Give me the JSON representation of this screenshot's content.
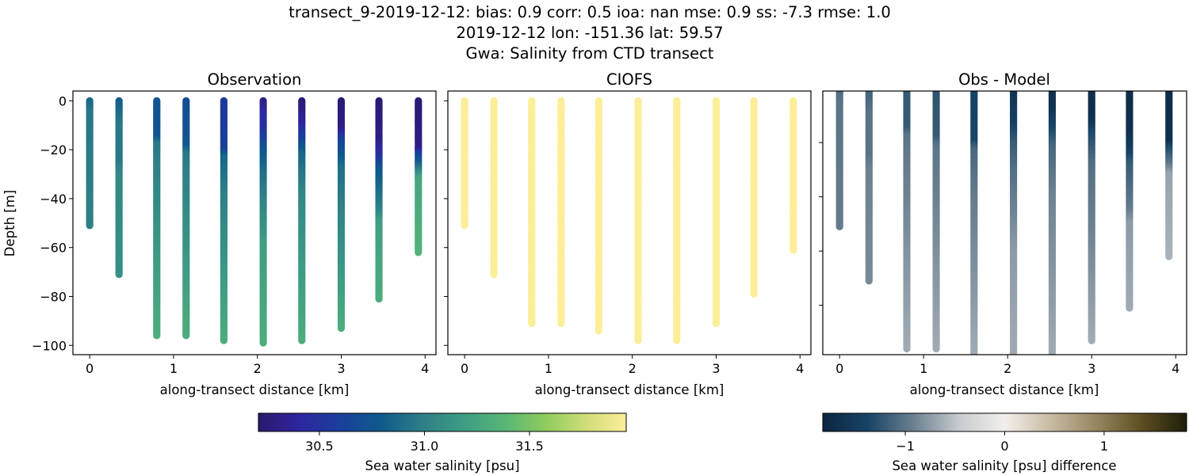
{
  "title_lines": [
    "transect_9-2019-12-12: bias: 0.9  corr: 0.5  ioa: nan  mse: 0.9  ss: -7.3  rmse: 1.0",
    "2019-12-12 lon: -151.36 lat: 59.57",
    "Gwa: Salinity from CTD transect"
  ],
  "chart_data": [
    {
      "type": "scatter",
      "title": "Observation",
      "xlabel": "along-transect distance [km]",
      "ylabel": "Depth [m]",
      "xlim": [
        -0.2,
        4.13
      ],
      "ylim": [
        -103.8,
        4.0
      ],
      "xticks": [
        0,
        1,
        2,
        3,
        4
      ],
      "yticks": [
        0,
        -20,
        -40,
        -60,
        -80,
        -100
      ],
      "colormap": "haline",
      "stations": [
        {
          "x": 0.0,
          "profile": [
            [
              0,
              30.85
            ],
            [
              -5,
              30.95
            ],
            [
              -51,
              31.0
            ]
          ]
        },
        {
          "x": 0.35,
          "profile": [
            [
              0,
              30.8
            ],
            [
              -10,
              30.95
            ],
            [
              -25,
              30.95
            ],
            [
              -30,
              31.05
            ],
            [
              -71,
              31.1
            ]
          ]
        },
        {
          "x": 0.8,
          "profile": [
            [
              0,
              30.75
            ],
            [
              -15,
              30.75
            ],
            [
              -18,
              30.95
            ],
            [
              -60,
              31.15
            ],
            [
              -96,
              31.3
            ]
          ]
        },
        {
          "x": 1.15,
          "profile": [
            [
              0,
              30.7
            ],
            [
              -18,
              30.75
            ],
            [
              -22,
              30.95
            ],
            [
              -96,
              31.3
            ]
          ]
        },
        {
          "x": 1.6,
          "profile": [
            [
              0,
              30.55
            ],
            [
              -20,
              30.6
            ],
            [
              -23,
              30.85
            ],
            [
              -40,
              31.0
            ],
            [
              -98,
              31.3
            ]
          ]
        },
        {
          "x": 2.07,
          "profile": [
            [
              0,
              30.3
            ],
            [
              -5,
              30.4
            ],
            [
              -12,
              30.5
            ],
            [
              -20,
              30.75
            ],
            [
              -30,
              30.9
            ],
            [
              -60,
              31.2
            ],
            [
              -99,
              31.3
            ]
          ]
        },
        {
          "x": 2.53,
          "profile": [
            [
              0,
              30.25
            ],
            [
              -8,
              30.35
            ],
            [
              -14,
              30.55
            ],
            [
              -22,
              30.85
            ],
            [
              -40,
              31.05
            ],
            [
              -98,
              31.3
            ]
          ]
        },
        {
          "x": 3.0,
          "profile": [
            [
              0,
              30.25
            ],
            [
              -12,
              30.3
            ],
            [
              -16,
              30.6
            ],
            [
              -28,
              30.9
            ],
            [
              -93,
              31.3
            ]
          ]
        },
        {
          "x": 3.45,
          "profile": [
            [
              0,
              30.25
            ],
            [
              -16,
              30.3
            ],
            [
              -22,
              30.45
            ],
            [
              -28,
              30.75
            ],
            [
              -45,
              31.0
            ],
            [
              -50,
              31.2
            ],
            [
              -81,
              31.3
            ]
          ]
        },
        {
          "x": 3.92,
          "profile": [
            [
              0,
              30.25
            ],
            [
              -20,
              30.3
            ],
            [
              -22,
              30.6
            ],
            [
              -28,
              30.95
            ],
            [
              -32,
              31.25
            ],
            [
              -62,
              31.35
            ]
          ]
        }
      ]
    },
    {
      "type": "scatter",
      "title": "CIOFS",
      "xlabel": "along-transect distance [km]",
      "xlim": [
        -0.2,
        4.13
      ],
      "ylim": [
        -103.8,
        4.0
      ],
      "xticks": [
        0,
        1,
        2,
        3,
        4
      ],
      "colormap": "haline",
      "stations": [
        {
          "x": 0.0,
          "profile": [
            [
              0,
              31.96
            ],
            [
              -51,
              31.96
            ]
          ]
        },
        {
          "x": 0.35,
          "profile": [
            [
              0,
              31.96
            ],
            [
              -71,
              31.96
            ]
          ]
        },
        {
          "x": 0.8,
          "profile": [
            [
              0,
              31.96
            ],
            [
              -91,
              31.96
            ]
          ]
        },
        {
          "x": 1.15,
          "profile": [
            [
              0,
              31.96
            ],
            [
              -91,
              31.96
            ]
          ]
        },
        {
          "x": 1.6,
          "profile": [
            [
              0,
              31.96
            ],
            [
              -94,
              31.96
            ]
          ]
        },
        {
          "x": 2.07,
          "profile": [
            [
              0,
              31.96
            ],
            [
              -98,
              31.96
            ]
          ]
        },
        {
          "x": 2.53,
          "profile": [
            [
              0,
              31.96
            ],
            [
              -98,
              31.96
            ]
          ]
        },
        {
          "x": 3.0,
          "profile": [
            [
              0,
              31.96
            ],
            [
              -91,
              31.96
            ]
          ]
        },
        {
          "x": 3.45,
          "profile": [
            [
              0,
              31.96
            ],
            [
              -79,
              31.96
            ]
          ]
        },
        {
          "x": 3.92,
          "profile": [
            [
              0,
              31.96
            ],
            [
              -61,
              31.96
            ]
          ]
        }
      ]
    },
    {
      "type": "scatter",
      "title": "Obs - Model",
      "xlabel": "along-transect distance [km]",
      "xlim": [
        -0.2,
        4.13
      ],
      "ylim": [
        -98.2,
        -1.0
      ],
      "xticks": [
        0,
        1,
        2,
        3,
        4
      ],
      "colormap": "diff",
      "derived_from": "Observation minus CIOFS"
    }
  ],
  "colorbars": [
    {
      "label": "Sea water salinity [psu]",
      "vmin": 30.21,
      "vmax": 31.96,
      "ticks": [
        "30.5",
        "31.0",
        "31.5"
      ],
      "stops": [
        "#2a186c",
        "#2e26a0",
        "#1a3f9b",
        "#0f5a8c",
        "#2d7f86",
        "#3d9c84",
        "#56b676",
        "#8dcb5e",
        "#cfdd78",
        "#fdee99"
      ]
    },
    {
      "label": "Sea water salinity [psu] difference",
      "vmin": -1.83,
      "vmax": 1.83,
      "ticks": [
        "−1",
        "0",
        "1"
      ],
      "stops": [
        "#0b2541",
        "#174466",
        "#6c8190",
        "#c8cbd0",
        "#f2efeb",
        "#c8bba3",
        "#978662",
        "#5e4f22",
        "#1e1e08"
      ]
    }
  ]
}
